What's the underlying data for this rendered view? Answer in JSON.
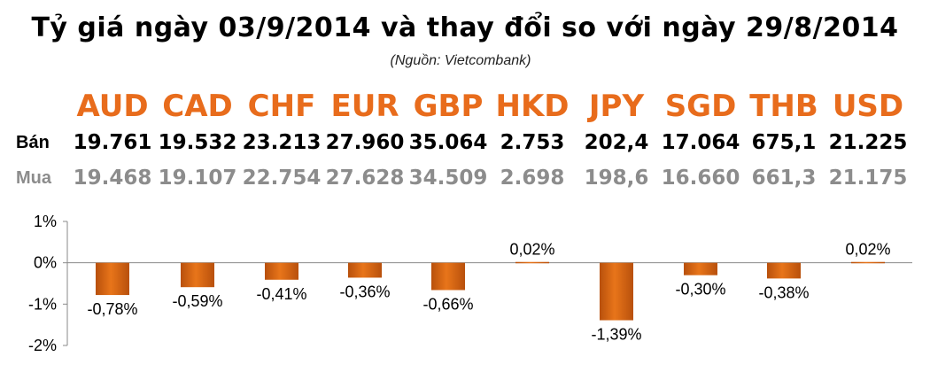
{
  "title": "Tỷ giá ngày 03/9/2014 và thay đổi so với ngày 29/8/2014",
  "source": "(Nguồn: Vietcombank)",
  "row_labels": {
    "sell": "Bán",
    "buy": "Mua"
  },
  "currencies": [
    {
      "code": "AUD",
      "sell": "19.761",
      "buy": "19.468"
    },
    {
      "code": "CAD",
      "sell": "19.532",
      "buy": "19.107"
    },
    {
      "code": "CHF",
      "sell": "23.213",
      "buy": "22.754"
    },
    {
      "code": "EUR",
      "sell": "27.960",
      "buy": "27.628"
    },
    {
      "code": "GBP",
      "sell": "35.064",
      "buy": "34.509"
    },
    {
      "code": "HKD",
      "sell": "2.753",
      "buy": "2.698"
    },
    {
      "code": "JPY",
      "sell": "202,4",
      "buy": "198,6"
    },
    {
      "code": "SGD",
      "sell": "17.064",
      "buy": "16.660"
    },
    {
      "code": "THB",
      "sell": "675,1",
      "buy": "661,3"
    },
    {
      "code": "USD",
      "sell": "21.225",
      "buy": "21.175"
    }
  ],
  "colors": {
    "code": "#e86c1c",
    "bar": "#e8751a",
    "bar_dark": "#b8500c",
    "buy_text": "#8c8c8c"
  },
  "chart_data": {
    "type": "bar",
    "categories": [
      "AUD",
      "CAD",
      "CHF",
      "EUR",
      "GBP",
      "HKD",
      "JPY",
      "SGD",
      "THB",
      "USD"
    ],
    "values": [
      -0.78,
      -0.59,
      -0.41,
      -0.36,
      -0.66,
      0.02,
      -1.39,
      -0.3,
      -0.38,
      0.02
    ],
    "data_labels": [
      "-0,78%",
      "-0,59%",
      "-0,41%",
      "-0,36%",
      "-0,66%",
      "0,02%",
      "-1,39%",
      "-0,30%",
      "-0,38%",
      "0,02%"
    ],
    "yticks": [
      1,
      0,
      -1,
      -2
    ],
    "ytick_labels": [
      "1%",
      "0%",
      "-1%",
      "-2%"
    ],
    "ylim": [
      -2,
      1
    ],
    "grid": false,
    "legend": "none"
  }
}
